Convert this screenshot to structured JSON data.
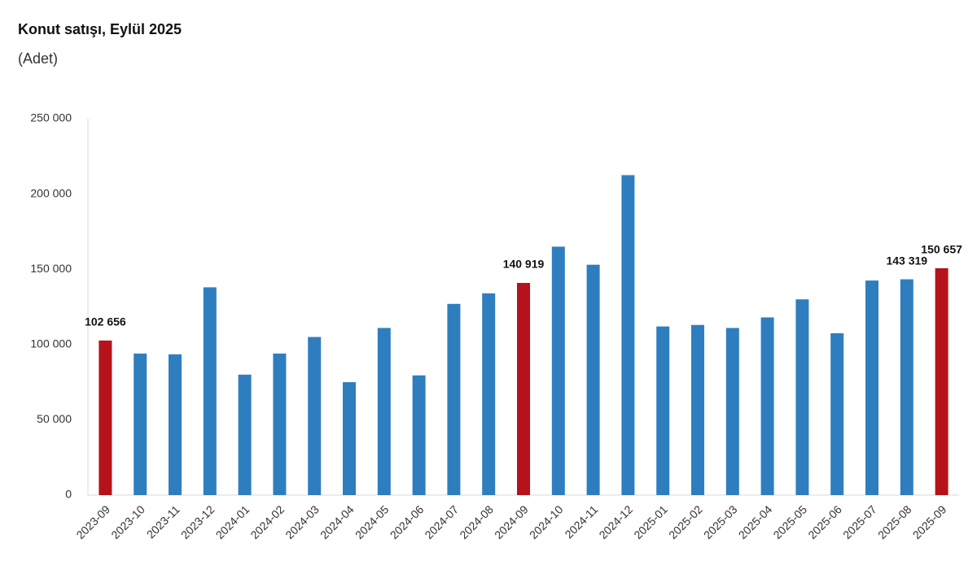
{
  "chart_data": {
    "type": "bar",
    "title": "Konut satışı, Eylül 2025",
    "subtitle": "(Adet)",
    "categories": [
      "2023-09",
      "2023-10",
      "2023-11",
      "2023-12",
      "2024-01",
      "2024-02",
      "2024-03",
      "2024-04",
      "2024-05",
      "2024-06",
      "2024-07",
      "2024-08",
      "2024-09",
      "2024-10",
      "2024-11",
      "2024-12",
      "2025-01",
      "2025-02",
      "2025-03",
      "2025-04",
      "2025-05",
      "2025-06",
      "2025-07",
      "2025-08",
      "2025-09"
    ],
    "values": [
      102656,
      94000,
      93500,
      138000,
      80000,
      94000,
      105000,
      75000,
      111000,
      79500,
      127000,
      134000,
      140919,
      165000,
      153000,
      212500,
      112000,
      113000,
      111000,
      118000,
      130000,
      107500,
      142500,
      143319,
      150657
    ],
    "value_labels": [
      "102 656",
      null,
      null,
      null,
      null,
      null,
      null,
      null,
      null,
      null,
      null,
      null,
      "140 919",
      null,
      null,
      null,
      null,
      null,
      null,
      null,
      null,
      null,
      null,
      "143 319",
      "150 657"
    ],
    "colors": [
      "#b5121b",
      "#2e7ebf",
      "#2e7ebf",
      "#2e7ebf",
      "#2e7ebf",
      "#2e7ebf",
      "#2e7ebf",
      "#2e7ebf",
      "#2e7ebf",
      "#2e7ebf",
      "#2e7ebf",
      "#2e7ebf",
      "#b5121b",
      "#2e7ebf",
      "#2e7ebf",
      "#2e7ebf",
      "#2e7ebf",
      "#2e7ebf",
      "#2e7ebf",
      "#2e7ebf",
      "#2e7ebf",
      "#2e7ebf",
      "#2e7ebf",
      "#2e7ebf",
      "#b5121b"
    ],
    "ylim": [
      0,
      250000
    ],
    "yticks": [
      0,
      {
        "value": 50000,
        "label": "50 000"
      },
      {
        "value": 100000,
        "label": "100 000"
      },
      {
        "value": 150000,
        "label": "150 000"
      },
      {
        "value": 200000,
        "label": "200 000"
      },
      {
        "value": 250000,
        "label": "250 000"
      }
    ],
    "grid": false
  }
}
